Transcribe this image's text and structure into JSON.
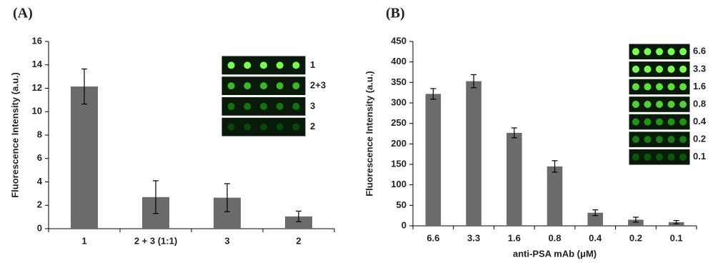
{
  "chart_data": [
    {
      "type": "bar",
      "panel_label": "(A)",
      "ylabel": "Fluorescence Intensity (a.u.)",
      "categories": [
        "1",
        "2 + 3 (1:1)",
        "3",
        "2"
      ],
      "values": [
        12.15,
        2.7,
        2.65,
        1.05
      ],
      "errors": [
        1.5,
        1.4,
        1.2,
        0.45
      ],
      "color": "#6b6b6b",
      "ylim": [
        0,
        16
      ],
      "yticks": [
        0,
        2,
        4,
        6,
        8,
        10,
        12,
        14,
        16
      ],
      "inset_labels": [
        "1",
        "2+3",
        "3",
        "2"
      ]
    },
    {
      "type": "bar",
      "panel_label": "(B)",
      "ylabel": "Fluorescence Intensity (a.u.)",
      "xlabel": "anti-PSA mAb (μM)",
      "categories": [
        "6.6",
        "3.3",
        "1.6",
        "0.8",
        "0.4",
        "0.2",
        "0.1"
      ],
      "values": [
        322,
        353,
        227,
        145,
        32,
        15,
        9
      ],
      "errors": [
        13,
        16,
        12,
        14,
        7,
        6,
        4
      ],
      "color": "#6b6b6b",
      "ylim": [
        0,
        450
      ],
      "yticks": [
        0,
        50,
        100,
        150,
        200,
        250,
        300,
        350,
        400,
        450
      ],
      "inset_labels": [
        "6.6",
        "3.3",
        "1.6",
        "0.8",
        "0.4",
        "0.2",
        "0.1"
      ]
    }
  ]
}
